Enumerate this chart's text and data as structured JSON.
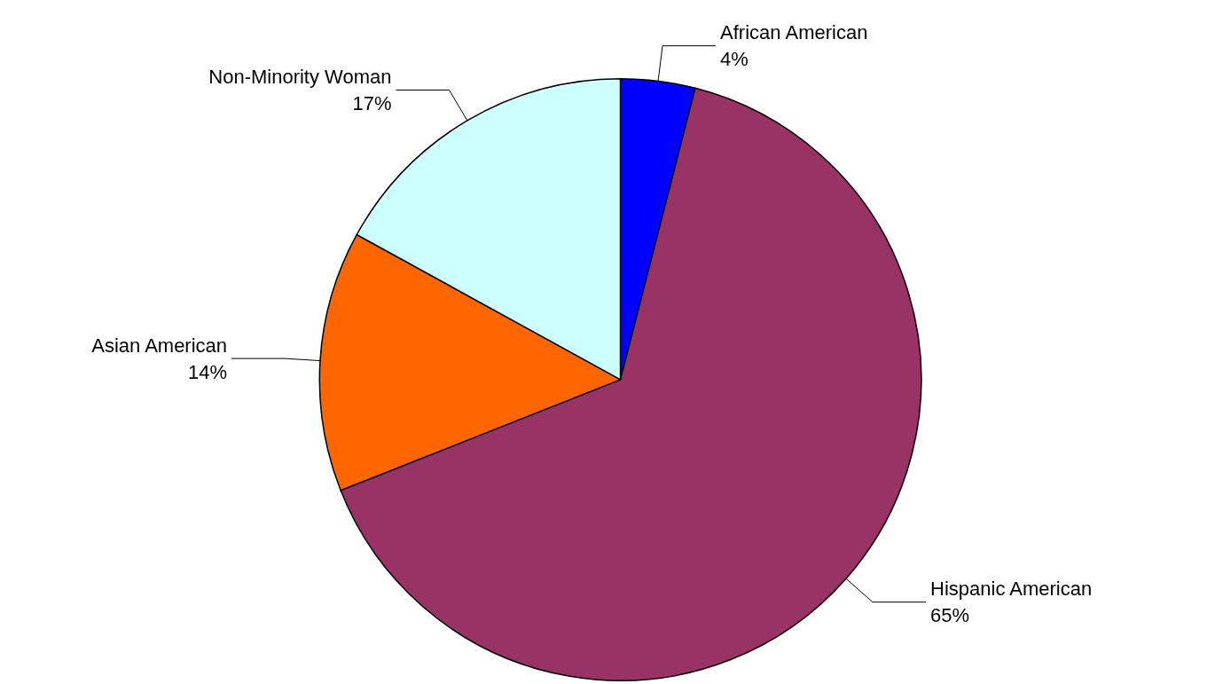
{
  "chart_data": {
    "type": "pie",
    "categories": [
      "African American",
      "Hispanic American",
      "Asian American",
      "Non-Minority Woman"
    ],
    "values": [
      4,
      65,
      14,
      17
    ],
    "value_labels": [
      "4%",
      "65%",
      "14%",
      "17%"
    ],
    "colors": [
      "#0000ff",
      "#993366",
      "#ff6600",
      "#ccffff"
    ],
    "legend": false
  }
}
